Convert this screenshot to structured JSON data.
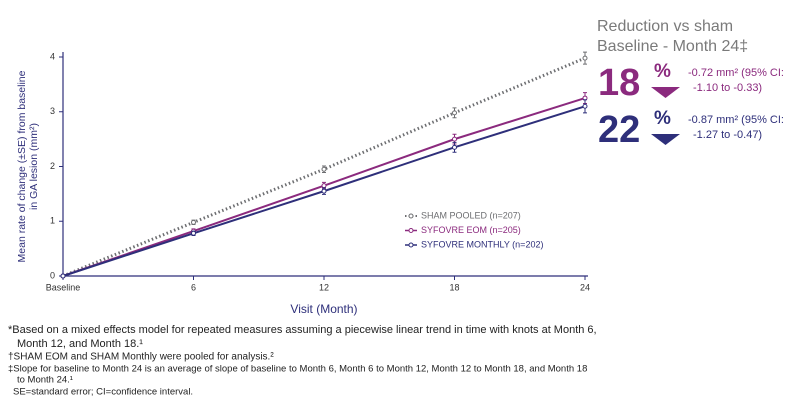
{
  "chart_data": {
    "type": "line",
    "y_label": [
      "Mean rate of change (±SE) from baseline",
      "in GA lesion (mm²)"
    ],
    "x_label": "Visit (Month)",
    "x": [
      0,
      6,
      12,
      18,
      24
    ],
    "xlim": [
      0,
      24
    ],
    "xticks": [
      {
        "value": 0,
        "label": "Baseline"
      },
      6,
      12,
      18,
      24
    ],
    "ylim": [
      0,
      4
    ],
    "yticks": [
      0,
      1,
      2,
      3,
      4
    ],
    "legend": "lower right",
    "series": [
      {
        "name": "SHAM POOLED (n=207)",
        "color": "#6d6e71",
        "line_style": "dotted",
        "values": [
          0,
          0.98,
          1.95,
          2.98,
          3.98
        ],
        "errors": [
          0,
          0.04,
          0.06,
          0.09,
          0.11
        ]
      },
      {
        "name": "SYFOVRE EOM (n=205)",
        "color": "#8b2a7e",
        "line_style": "solid",
        "values": [
          0,
          0.82,
          1.65,
          2.5,
          3.25
        ],
        "errors": [
          0,
          0.04,
          0.06,
          0.09,
          0.1
        ]
      },
      {
        "name": "SYFOVRE MONTHLY (n=202)",
        "color": "#2e2f7a",
        "line_style": "solid",
        "values": [
          0,
          0.78,
          1.55,
          2.35,
          3.1
        ],
        "errors": [
          0,
          0.04,
          0.06,
          0.09,
          0.12
        ]
      }
    ]
  },
  "panel": {
    "title": [
      "Reduction vs sham",
      "Baseline - Month 24‡"
    ],
    "items": [
      {
        "percent": 18,
        "unit": "%",
        "color": "#8b2a7e",
        "detail": [
          "-0.72 mm² (95% CI:",
          "-1.10 to -0.33)"
        ]
      },
      {
        "percent": 22,
        "unit": "%",
        "color": "#2e2f7a",
        "detail": [
          "-0.87 mm² (95% CI:",
          "-1.27 to -0.47)"
        ]
      }
    ]
  },
  "footnotes": [
    "*Based on a mixed effects model for repeated measures assuming a piecewise linear trend in time with knots at Month 6,",
    "Month 12, and Month 18.¹",
    "†SHAM EOM and SHAM Monthly were pooled for analysis.²",
    "‡Slope for baseline to Month 24 is an average of slope of baseline to Month 6, Month 6 to Month 12, Month 12 to Month 18, and Month 18",
    "to Month 24.¹",
    "SE=standard error; CI=confidence interval."
  ]
}
